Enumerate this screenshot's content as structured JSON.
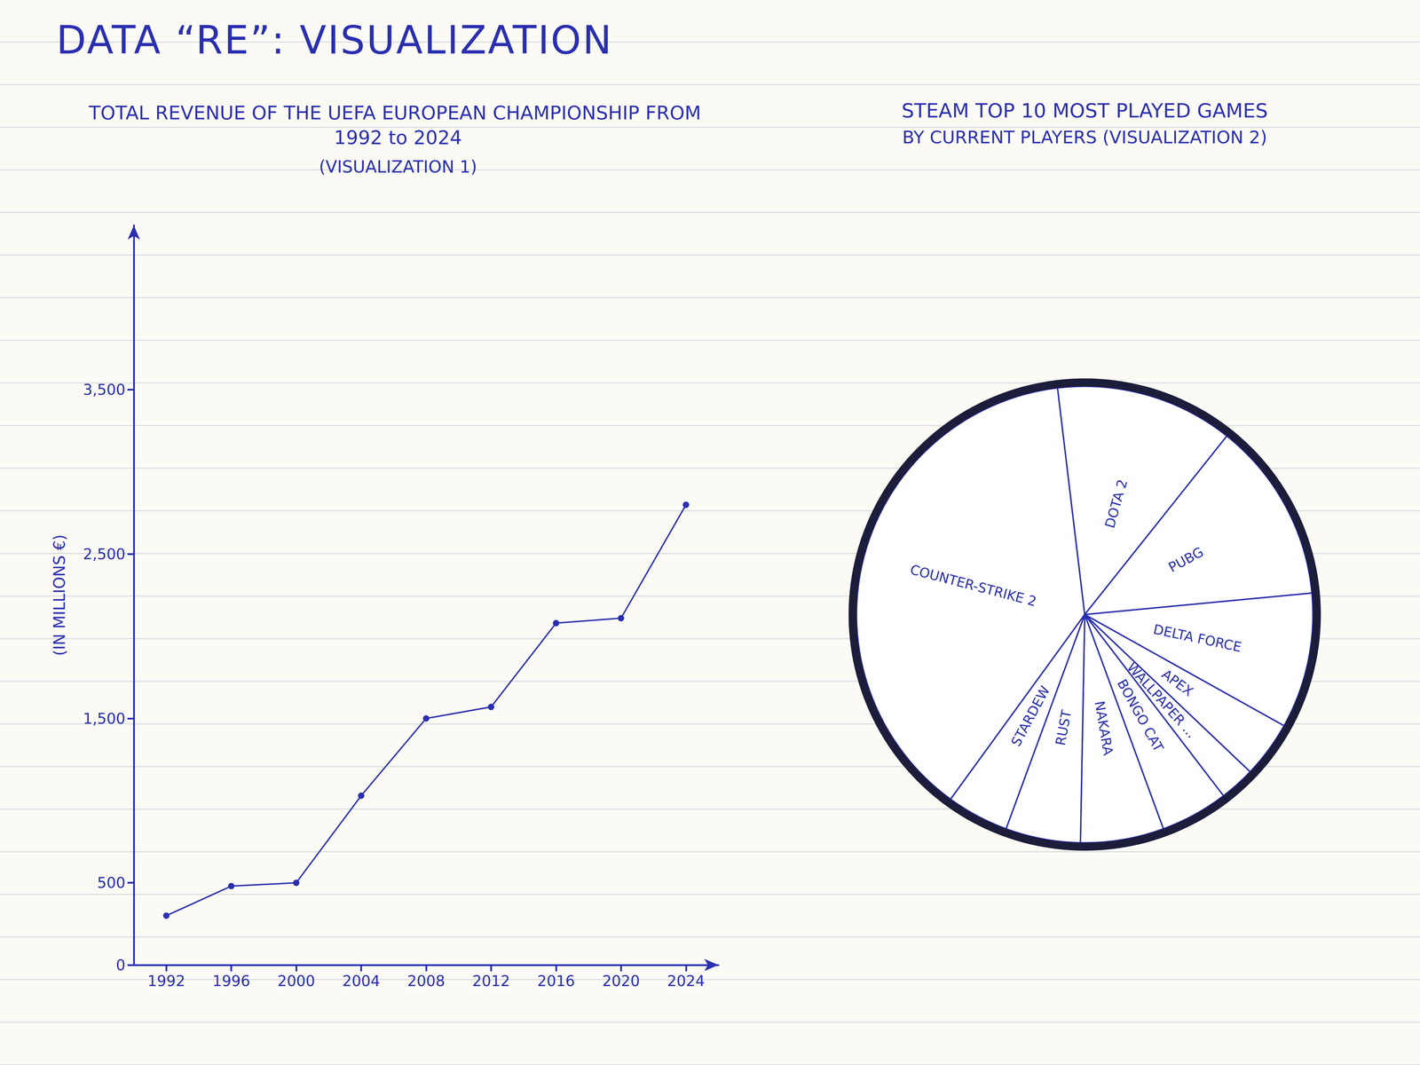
{
  "page": {
    "title": "DATA “RE”: VISUALIZATION"
  },
  "chart_data": [
    {
      "type": "line",
      "title": "TOTAL REVENUE OF THE UEFA EUROPEAN CHAMPIONSHIP FROM 1992 to 2024",
      "subtitle": "(VISUALIZATION 1)",
      "y_label": "(IN MILLIONS €)",
      "categories": [
        "1992",
        "1996",
        "2000",
        "2004",
        "2008",
        "2012",
        "2016",
        "2020",
        "2024"
      ],
      "values": [
        300,
        480,
        500,
        1030,
        1500,
        1570,
        2080,
        2110,
        2800
      ],
      "color": "#2a2fb0",
      "marker": "circle",
      "ylim": [
        0,
        4500
      ],
      "yticks": [
        0,
        500,
        1500,
        2500,
        3500
      ],
      "grid": false
    },
    {
      "type": "pie",
      "title": "STEAM TOP 10 MOST PLAYED GAMES",
      "subtitle": "BY CURRENT PLAYERS (VISUALIZATION 2)",
      "categories": [
        "COUNTER-STRIKE 2",
        "DOTA 2",
        "PUBG",
        "DELTA FORCE",
        "APEX",
        "WALLPAPER ...",
        "BONGO CAT",
        "NAKARA",
        "RUST",
        "STARDEW"
      ],
      "values": [
        38.1,
        12.6,
        12.8,
        9.6,
        4.0,
        2.5,
        4.8,
        5.9,
        5.3,
        4.4
      ],
      "color": "#2a2fb0"
    }
  ]
}
